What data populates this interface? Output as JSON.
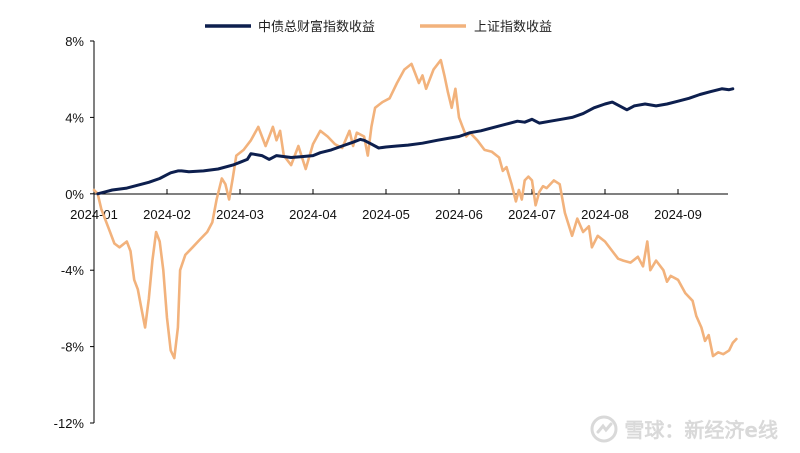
{
  "chart_data": {
    "type": "line",
    "title": "",
    "xlabel": "",
    "ylabel": "",
    "x_ticks": [
      "2024-01",
      "2024-02",
      "2024-03",
      "2024-04",
      "2024-05",
      "2024-06",
      "2024-07",
      "2024-08",
      "2024-09"
    ],
    "y_ticks": [
      "8%",
      "4%",
      "0%",
      "-4%",
      "-8%",
      "-12%"
    ],
    "ylim": [
      -12,
      8
    ],
    "xlim": [
      0,
      8.9
    ],
    "grid": false,
    "legend_position": "top-center",
    "series": [
      {
        "name": "中债总财富指数收益",
        "color": "#0d1f4e",
        "points": [
          [
            0.05,
            0.0
          ],
          [
            0.15,
            0.1
          ],
          [
            0.25,
            0.2
          ],
          [
            0.45,
            0.3
          ],
          [
            0.6,
            0.45
          ],
          [
            0.75,
            0.6
          ],
          [
            0.9,
            0.8
          ],
          [
            1.0,
            1.0
          ],
          [
            1.05,
            1.1
          ],
          [
            1.15,
            1.2
          ],
          [
            1.2,
            1.2
          ],
          [
            1.3,
            1.15
          ],
          [
            1.5,
            1.2
          ],
          [
            1.7,
            1.3
          ],
          [
            1.9,
            1.5
          ],
          [
            2.0,
            1.65
          ],
          [
            2.1,
            1.8
          ],
          [
            2.15,
            2.1
          ],
          [
            2.3,
            2.0
          ],
          [
            2.4,
            1.8
          ],
          [
            2.5,
            2.0
          ],
          [
            2.7,
            1.9
          ],
          [
            2.85,
            1.95
          ],
          [
            3.0,
            2.0
          ],
          [
            3.1,
            2.15
          ],
          [
            3.25,
            2.3
          ],
          [
            3.4,
            2.5
          ],
          [
            3.55,
            2.7
          ],
          [
            3.65,
            2.85
          ],
          [
            3.7,
            2.8
          ],
          [
            3.8,
            2.6
          ],
          [
            3.9,
            2.4
          ],
          [
            4.0,
            2.45
          ],
          [
            4.15,
            2.5
          ],
          [
            4.3,
            2.55
          ],
          [
            4.5,
            2.65
          ],
          [
            4.7,
            2.8
          ],
          [
            4.85,
            2.9
          ],
          [
            5.0,
            3.0
          ],
          [
            5.15,
            3.2
          ],
          [
            5.3,
            3.3
          ],
          [
            5.5,
            3.5
          ],
          [
            5.65,
            3.65
          ],
          [
            5.8,
            3.8
          ],
          [
            5.9,
            3.75
          ],
          [
            6.0,
            3.9
          ],
          [
            6.1,
            3.7
          ],
          [
            6.25,
            3.8
          ],
          [
            6.4,
            3.9
          ],
          [
            6.55,
            4.0
          ],
          [
            6.7,
            4.2
          ],
          [
            6.85,
            4.5
          ],
          [
            7.0,
            4.7
          ],
          [
            7.1,
            4.8
          ],
          [
            7.2,
            4.6
          ],
          [
            7.3,
            4.4
          ],
          [
            7.4,
            4.6
          ],
          [
            7.55,
            4.7
          ],
          [
            7.7,
            4.6
          ],
          [
            7.85,
            4.7
          ],
          [
            8.0,
            4.85
          ],
          [
            8.15,
            5.0
          ],
          [
            8.3,
            5.2
          ],
          [
            8.45,
            5.35
          ],
          [
            8.6,
            5.5
          ],
          [
            8.7,
            5.45
          ],
          [
            8.75,
            5.5
          ]
        ]
      },
      {
        "name": "上证指数收益",
        "color": "#f2b27c",
        "points": [
          [
            0.0,
            0.2
          ],
          [
            0.05,
            0.0
          ],
          [
            0.1,
            -0.8
          ],
          [
            0.2,
            -1.8
          ],
          [
            0.28,
            -2.6
          ],
          [
            0.35,
            -2.8
          ],
          [
            0.45,
            -2.5
          ],
          [
            0.5,
            -3.0
          ],
          [
            0.55,
            -4.5
          ],
          [
            0.6,
            -5.0
          ],
          [
            0.65,
            -6.0
          ],
          [
            0.7,
            -7.0
          ],
          [
            0.75,
            -5.5
          ],
          [
            0.8,
            -3.5
          ],
          [
            0.85,
            -2.0
          ],
          [
            0.9,
            -2.5
          ],
          [
            0.95,
            -4.0
          ],
          [
            1.0,
            -6.5
          ],
          [
            1.05,
            -8.2
          ],
          [
            1.1,
            -8.6
          ],
          [
            1.15,
            -7.0
          ],
          [
            1.18,
            -4.0
          ],
          [
            1.25,
            -3.2
          ],
          [
            1.35,
            -2.8
          ],
          [
            1.45,
            -2.4
          ],
          [
            1.55,
            -2.0
          ],
          [
            1.62,
            -1.5
          ],
          [
            1.68,
            -0.3
          ],
          [
            1.75,
            0.8
          ],
          [
            1.8,
            0.5
          ],
          [
            1.85,
            -0.3
          ],
          [
            1.9,
            0.8
          ],
          [
            1.95,
            2.0
          ],
          [
            2.05,
            2.3
          ],
          [
            2.15,
            2.8
          ],
          [
            2.25,
            3.5
          ],
          [
            2.35,
            2.5
          ],
          [
            2.45,
            3.5
          ],
          [
            2.5,
            2.8
          ],
          [
            2.55,
            3.3
          ],
          [
            2.6,
            2.0
          ],
          [
            2.7,
            1.5
          ],
          [
            2.8,
            2.5
          ],
          [
            2.9,
            1.3
          ],
          [
            3.0,
            2.6
          ],
          [
            3.1,
            3.3
          ],
          [
            3.2,
            3.0
          ],
          [
            3.3,
            2.6
          ],
          [
            3.4,
            2.4
          ],
          [
            3.5,
            3.3
          ],
          [
            3.55,
            2.5
          ],
          [
            3.6,
            3.2
          ],
          [
            3.7,
            3.0
          ],
          [
            3.75,
            2.0
          ],
          [
            3.8,
            3.5
          ],
          [
            3.85,
            4.5
          ],
          [
            3.95,
            4.8
          ],
          [
            4.05,
            5.0
          ],
          [
            4.15,
            5.8
          ],
          [
            4.25,
            6.5
          ],
          [
            4.35,
            6.8
          ],
          [
            4.45,
            5.8
          ],
          [
            4.5,
            6.2
          ],
          [
            4.55,
            5.5
          ],
          [
            4.65,
            6.5
          ],
          [
            4.75,
            7.0
          ],
          [
            4.8,
            6.2
          ],
          [
            4.85,
            5.3
          ],
          [
            4.9,
            4.5
          ],
          [
            4.95,
            5.5
          ],
          [
            5.0,
            4.0
          ],
          [
            5.05,
            3.5
          ],
          [
            5.1,
            3.0
          ],
          [
            5.15,
            3.2
          ],
          [
            5.25,
            2.8
          ],
          [
            5.35,
            2.3
          ],
          [
            5.45,
            2.2
          ],
          [
            5.55,
            1.9
          ],
          [
            5.6,
            1.2
          ],
          [
            5.65,
            1.4
          ],
          [
            5.72,
            0.5
          ],
          [
            5.78,
            -0.4
          ],
          [
            5.82,
            0.2
          ],
          [
            5.86,
            -0.3
          ],
          [
            5.9,
            0.7
          ],
          [
            5.95,
            0.9
          ],
          [
            6.0,
            0.7
          ],
          [
            6.05,
            -0.6
          ],
          [
            6.1,
            0.1
          ],
          [
            6.15,
            0.4
          ],
          [
            6.2,
            0.3
          ],
          [
            6.3,
            0.7
          ],
          [
            6.38,
            0.5
          ],
          [
            6.45,
            -1.0
          ],
          [
            6.55,
            -2.2
          ],
          [
            6.62,
            -1.3
          ],
          [
            6.7,
            -2.0
          ],
          [
            6.78,
            -1.7
          ],
          [
            6.82,
            -2.8
          ],
          [
            6.9,
            -2.2
          ],
          [
            7.0,
            -2.5
          ],
          [
            7.1,
            -3.0
          ],
          [
            7.18,
            -3.4
          ],
          [
            7.25,
            -3.5
          ],
          [
            7.35,
            -3.6
          ],
          [
            7.45,
            -3.3
          ],
          [
            7.52,
            -3.8
          ],
          [
            7.58,
            -2.5
          ],
          [
            7.62,
            -4.0
          ],
          [
            7.7,
            -3.5
          ],
          [
            7.8,
            -4.0
          ],
          [
            7.85,
            -4.6
          ],
          [
            7.9,
            -4.3
          ],
          [
            8.0,
            -4.5
          ],
          [
            8.1,
            -5.2
          ],
          [
            8.2,
            -5.6
          ],
          [
            8.25,
            -6.4
          ],
          [
            8.32,
            -7.0
          ],
          [
            8.37,
            -7.7
          ],
          [
            8.42,
            -7.4
          ],
          [
            8.48,
            -8.5
          ],
          [
            8.55,
            -8.3
          ],
          [
            8.62,
            -8.4
          ],
          [
            8.7,
            -8.2
          ],
          [
            8.75,
            -7.8
          ],
          [
            8.8,
            -7.6
          ]
        ]
      }
    ]
  },
  "watermark": {
    "text": "雪球：新经济e线"
  }
}
